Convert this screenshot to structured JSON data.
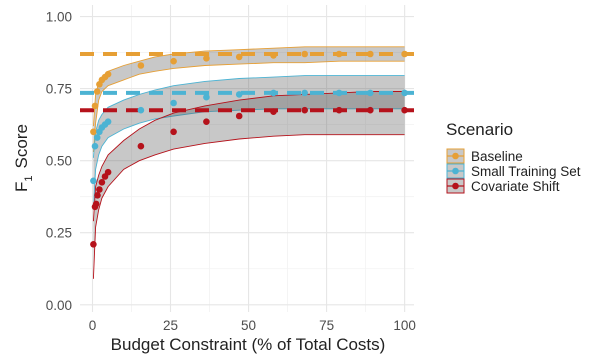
{
  "chart_data": {
    "type": "line",
    "xlabel": "Budget Constraint (% of Total Costs)",
    "ylabel_main": "F",
    "ylabel_sub": "1",
    "ylabel_rest": "Score",
    "xlim": [
      -4,
      103
    ],
    "ylim": [
      -0.025,
      1.04
    ],
    "x_ticks": [
      0,
      25,
      50,
      75,
      100
    ],
    "x_tick_labels": [
      "0",
      "25",
      "50",
      "75",
      "100"
    ],
    "y_ticks": [
      0.0,
      0.25,
      0.5,
      0.75,
      1.0
    ],
    "y_tick_labels": [
      "0.00",
      "0.25",
      "0.50",
      "0.75",
      "1.00"
    ],
    "grid": true,
    "legend": {
      "title": "Scenario",
      "placement": "right"
    },
    "series": [
      {
        "name": "Baseline",
        "color": "#E69F35",
        "reference_line": 0.87,
        "points": [
          [
            0.3,
            0.6
          ],
          [
            0.8,
            0.69
          ],
          [
            1.5,
            0.74
          ],
          [
            2.2,
            0.765
          ],
          [
            3,
            0.78
          ],
          [
            4,
            0.79
          ],
          [
            5,
            0.8
          ],
          [
            15.5,
            0.83
          ],
          [
            26,
            0.845
          ],
          [
            36.5,
            0.855
          ],
          [
            47,
            0.86
          ],
          [
            58,
            0.865
          ],
          [
            68,
            0.87
          ],
          [
            79,
            0.87
          ],
          [
            89,
            0.87
          ],
          [
            100,
            0.87
          ]
        ],
        "band_x": [
          0.3,
          1,
          2,
          3,
          5,
          10,
          15,
          20,
          26,
          36,
          47,
          58,
          68,
          79,
          89,
          100
        ],
        "band_low": [
          0.53,
          0.63,
          0.71,
          0.74,
          0.76,
          0.78,
          0.8,
          0.81,
          0.82,
          0.83,
          0.835,
          0.84,
          0.84,
          0.845,
          0.845,
          0.845
        ],
        "band_high": [
          0.62,
          0.73,
          0.77,
          0.79,
          0.81,
          0.83,
          0.845,
          0.86,
          0.87,
          0.88,
          0.885,
          0.89,
          0.895,
          0.895,
          0.895,
          0.895
        ]
      },
      {
        "name": "Small Training Set",
        "color": "#4CB3D3",
        "reference_line": 0.735,
        "points": [
          [
            0.3,
            0.43
          ],
          [
            0.8,
            0.55
          ],
          [
            1.5,
            0.58
          ],
          [
            2.2,
            0.6
          ],
          [
            3,
            0.615
          ],
          [
            4,
            0.625
          ],
          [
            5,
            0.635
          ],
          [
            15.5,
            0.675
          ],
          [
            26,
            0.7
          ],
          [
            36.5,
            0.72
          ],
          [
            47,
            0.73
          ],
          [
            58,
            0.735
          ],
          [
            68,
            0.735
          ],
          [
            79,
            0.735
          ],
          [
            89,
            0.735
          ],
          [
            100,
            0.735
          ]
        ],
        "band_x": [
          0.3,
          1,
          2,
          3,
          5,
          10,
          15,
          20,
          26,
          36,
          47,
          58,
          68,
          79,
          89,
          100
        ],
        "band_low": [
          0.33,
          0.47,
          0.52,
          0.55,
          0.58,
          0.61,
          0.63,
          0.645,
          0.655,
          0.67,
          0.675,
          0.68,
          0.68,
          0.68,
          0.68,
          0.68
        ],
        "band_high": [
          0.51,
          0.6,
          0.64,
          0.66,
          0.685,
          0.71,
          0.73,
          0.745,
          0.76,
          0.775,
          0.785,
          0.79,
          0.795,
          0.795,
          0.795,
          0.795
        ]
      },
      {
        "name": "Covariate Shift",
        "color": "#B5121B",
        "reference_line": 0.675,
        "points": [
          [
            0.3,
            0.21
          ],
          [
            0.8,
            0.34
          ],
          [
            1.2,
            0.35
          ],
          [
            1.6,
            0.38
          ],
          [
            2.2,
            0.4
          ],
          [
            3,
            0.425
          ],
          [
            4,
            0.445
          ],
          [
            5,
            0.46
          ],
          [
            15.5,
            0.55
          ],
          [
            26,
            0.6
          ],
          [
            36.5,
            0.635
          ],
          [
            47,
            0.655
          ],
          [
            58,
            0.67
          ],
          [
            68,
            0.675
          ],
          [
            79,
            0.675
          ],
          [
            89,
            0.675
          ],
          [
            100,
            0.675
          ]
        ],
        "band_x": [
          0.3,
          1,
          2,
          3,
          5,
          10,
          15,
          20,
          26,
          36,
          47,
          58,
          68,
          79,
          89,
          100
        ],
        "band_low": [
          0.09,
          0.27,
          0.33,
          0.37,
          0.41,
          0.47,
          0.5,
          0.52,
          0.54,
          0.56,
          0.575,
          0.585,
          0.59,
          0.59,
          0.59,
          0.59
        ],
        "band_high": [
          0.29,
          0.41,
          0.45,
          0.48,
          0.52,
          0.57,
          0.61,
          0.64,
          0.665,
          0.69,
          0.71,
          0.725,
          0.73,
          0.735,
          0.74,
          0.74
        ]
      }
    ]
  }
}
